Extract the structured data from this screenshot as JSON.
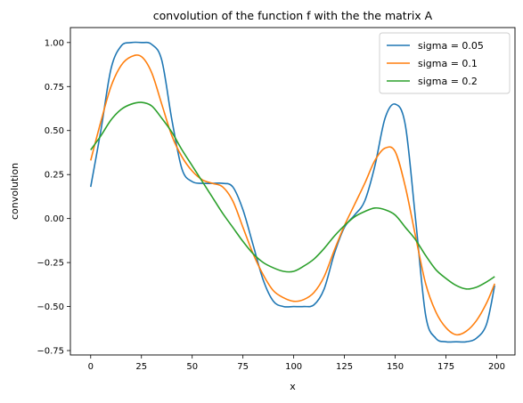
{
  "chart_data": {
    "type": "line",
    "title": "convolution of the function f with the the matrix A",
    "xlabel": "x",
    "ylabel": "convolution",
    "xlim": [
      -10,
      209
    ],
    "ylim": [
      -0.775,
      1.085
    ],
    "xticks": [
      0,
      25,
      50,
      75,
      100,
      125,
      150,
      175,
      200
    ],
    "yticks": [
      -0.75,
      -0.5,
      -0.25,
      0.0,
      0.25,
      0.5,
      0.75,
      1.0
    ],
    "xtick_labels": [
      "0",
      "25",
      "50",
      "75",
      "100",
      "125",
      "150",
      "175",
      "200"
    ],
    "ytick_labels": [
      "−0.75",
      "−0.50",
      "−0.25",
      "0.00",
      "0.25",
      "0.50",
      "0.75",
      "1.00"
    ],
    "grid": false,
    "legend_position": "top-right",
    "x": [
      0,
      5,
      10,
      15,
      20,
      25,
      30,
      35,
      40,
      45,
      50,
      55,
      60,
      65,
      70,
      75,
      80,
      85,
      90,
      95,
      100,
      105,
      110,
      115,
      120,
      125,
      130,
      135,
      140,
      145,
      150,
      155,
      160,
      165,
      170,
      175,
      180,
      185,
      190,
      195,
      199
    ],
    "series": [
      {
        "name": "sigma = 0.05",
        "color": "#1f77b4",
        "values": [
          0.18,
          0.5,
          0.85,
          0.98,
          1.0,
          1.0,
          0.99,
          0.9,
          0.56,
          0.28,
          0.21,
          0.2,
          0.2,
          0.2,
          0.18,
          0.05,
          -0.15,
          -0.35,
          -0.47,
          -0.5,
          -0.5,
          -0.5,
          -0.49,
          -0.4,
          -0.2,
          -0.05,
          0.02,
          0.1,
          0.3,
          0.57,
          0.65,
          0.53,
          0.0,
          -0.55,
          -0.68,
          -0.7,
          -0.7,
          -0.7,
          -0.68,
          -0.6,
          -0.38
        ]
      },
      {
        "name": "sigma = 0.1",
        "color": "#ff7f0e",
        "values": [
          0.33,
          0.55,
          0.75,
          0.87,
          0.92,
          0.92,
          0.83,
          0.65,
          0.47,
          0.35,
          0.27,
          0.22,
          0.2,
          0.18,
          0.1,
          -0.05,
          -0.2,
          -0.32,
          -0.41,
          -0.45,
          -0.47,
          -0.46,
          -0.42,
          -0.33,
          -0.18,
          -0.04,
          0.08,
          0.2,
          0.33,
          0.4,
          0.38,
          0.18,
          -0.1,
          -0.37,
          -0.53,
          -0.62,
          -0.66,
          -0.64,
          -0.58,
          -0.48,
          -0.37
        ]
      },
      {
        "name": "sigma = 0.2",
        "color": "#2ca02c",
        "values": [
          0.39,
          0.47,
          0.56,
          0.62,
          0.65,
          0.66,
          0.64,
          0.57,
          0.49,
          0.39,
          0.3,
          0.21,
          0.12,
          0.03,
          -0.05,
          -0.13,
          -0.2,
          -0.25,
          -0.28,
          -0.3,
          -0.3,
          -0.27,
          -0.23,
          -0.17,
          -0.1,
          -0.04,
          0.01,
          0.04,
          0.06,
          0.05,
          0.02,
          -0.05,
          -0.12,
          -0.21,
          -0.29,
          -0.34,
          -0.38,
          -0.4,
          -0.39,
          -0.36,
          -0.33
        ]
      }
    ]
  }
}
